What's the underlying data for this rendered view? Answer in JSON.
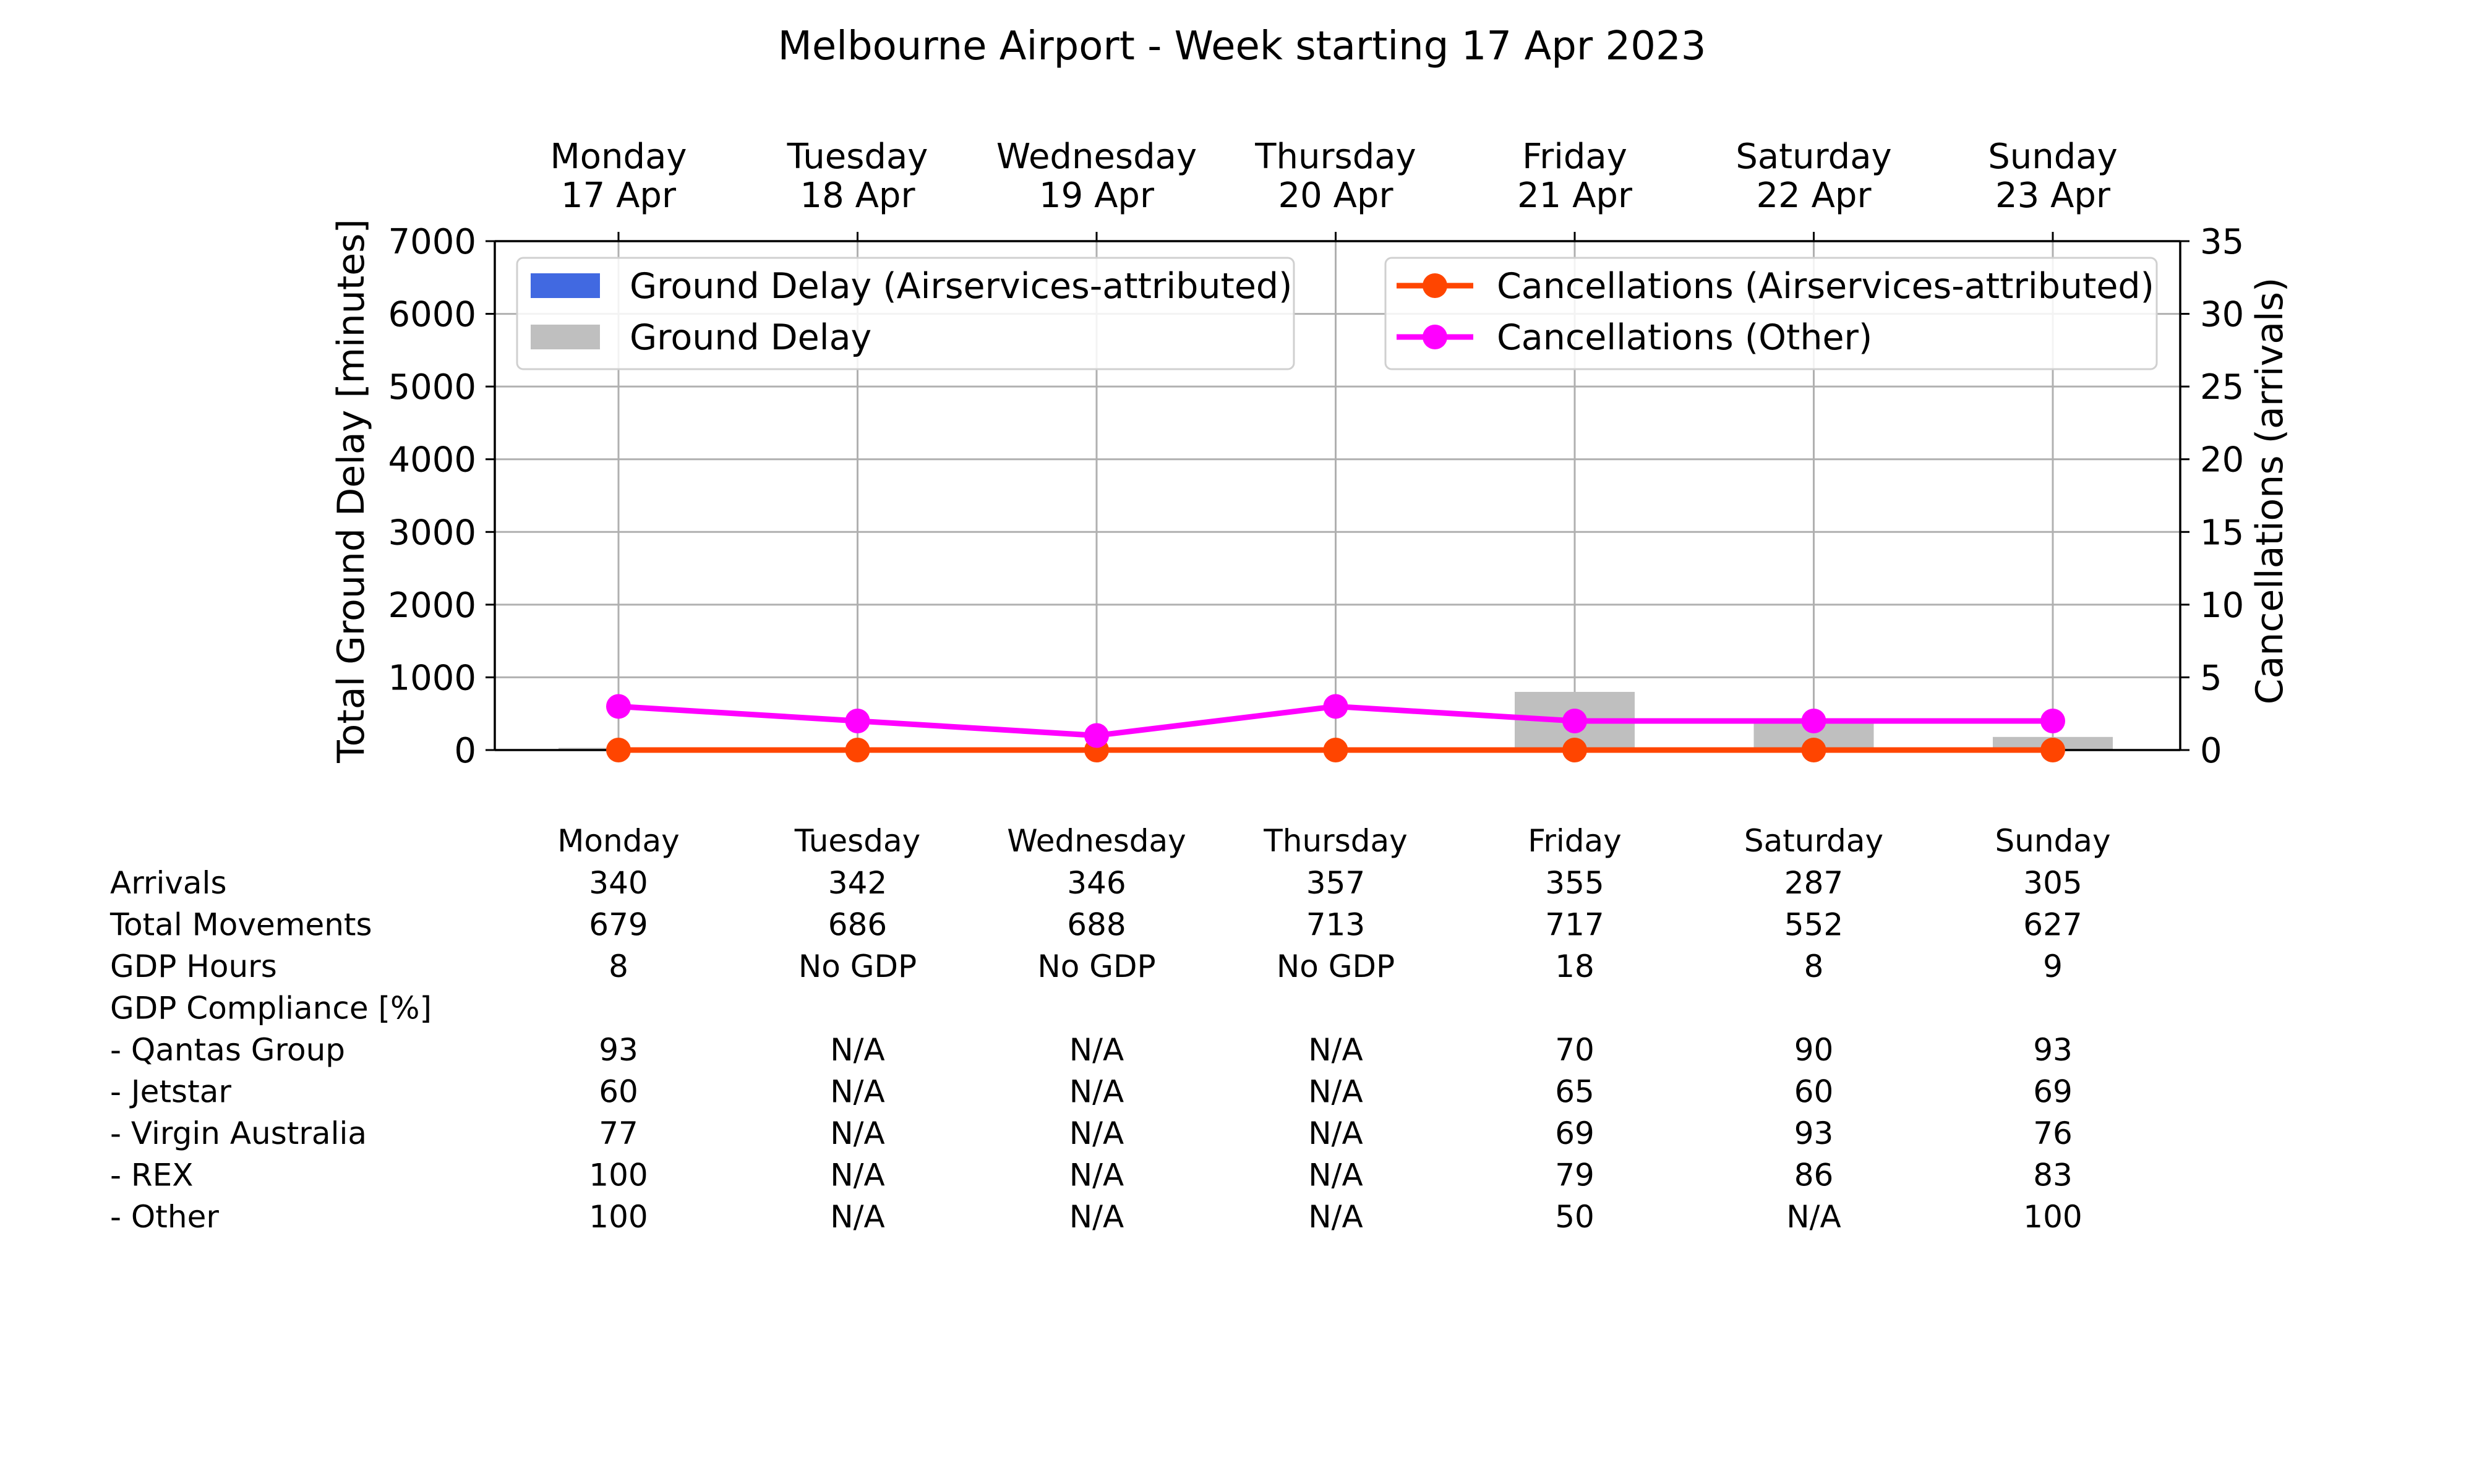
{
  "chart_data": {
    "type": "bar",
    "title": "Melbourne Airport - Week starting 17 Apr 2023",
    "categories": [
      {
        "day": "Monday",
        "date": "17 Apr"
      },
      {
        "day": "Tuesday",
        "date": "18 Apr"
      },
      {
        "day": "Wednesday",
        "date": "19 Apr"
      },
      {
        "day": "Thursday",
        "date": "20 Apr"
      },
      {
        "day": "Friday",
        "date": "21 Apr"
      },
      {
        "day": "Saturday",
        "date": "22 Apr"
      },
      {
        "day": "Sunday",
        "date": "23 Apr"
      }
    ],
    "left_axis": {
      "label": "Total Ground Delay [minutes]",
      "ylim": [
        0,
        7000
      ],
      "ticks": [
        "0",
        "1000",
        "2000",
        "3000",
        "4000",
        "5000",
        "6000",
        "7000"
      ]
    },
    "right_axis": {
      "label": "Cancellations (arrivals)",
      "ylim": [
        0,
        35
      ],
      "ticks": [
        "0",
        "5",
        "10",
        "15",
        "20",
        "25",
        "30",
        "35"
      ]
    },
    "grid": true,
    "bar_series": [
      {
        "name": "Ground Delay",
        "color": "#bfbfbf",
        "values": [
          30,
          0,
          0,
          0,
          800,
          400,
          180
        ]
      },
      {
        "name": "Ground Delay (Airservices-attributed)",
        "color": "#4169e1",
        "values": [
          0,
          0,
          0,
          0,
          0,
          0,
          0
        ]
      }
    ],
    "line_series": [
      {
        "name": "Cancellations (Airservices-attributed)",
        "color": "#ff4500",
        "values": [
          0,
          0,
          0,
          0,
          0,
          0,
          0
        ]
      },
      {
        "name": "Cancellations (Other)",
        "color": "#ff00ff",
        "values": [
          3,
          2,
          1,
          3,
          2,
          2,
          2
        ]
      }
    ],
    "legend_left": [
      "Ground Delay (Airservices-attributed)",
      "Ground Delay"
    ],
    "legend_right": [
      "Cancellations (Airservices-attributed)",
      "Cancellations (Other)"
    ],
    "legend_left_placement": "upper-left",
    "legend_right_placement": "upper-right"
  },
  "table": {
    "header": [
      "Monday",
      "Tuesday",
      "Wednesday",
      "Thursday",
      "Friday",
      "Saturday",
      "Sunday"
    ],
    "rows": [
      {
        "label": "Arrivals",
        "values": [
          "340",
          "342",
          "346",
          "357",
          "355",
          "287",
          "305"
        ]
      },
      {
        "label": "Total Movements",
        "values": [
          "679",
          "686",
          "688",
          "713",
          "717",
          "552",
          "627"
        ]
      },
      {
        "label": "GDP Hours",
        "values": [
          "8",
          "No GDP",
          "No GDP",
          "No GDP",
          "18",
          "8",
          "9"
        ]
      },
      {
        "label": "GDP Compliance [%]",
        "values": [
          "",
          "",
          "",
          "",
          "",
          "",
          ""
        ]
      },
      {
        "label": "  - Qantas Group",
        "values": [
          "93",
          "N/A",
          "N/A",
          "N/A",
          "70",
          "90",
          "93"
        ]
      },
      {
        "label": "  - Jetstar",
        "values": [
          "60",
          "N/A",
          "N/A",
          "N/A",
          "65",
          "60",
          "69"
        ]
      },
      {
        "label": "  - Virgin Australia",
        "values": [
          "77",
          "N/A",
          "N/A",
          "N/A",
          "69",
          "93",
          "76"
        ]
      },
      {
        "label": "  - REX",
        "values": [
          "100",
          "N/A",
          "N/A",
          "N/A",
          "79",
          "86",
          "83"
        ]
      },
      {
        "label": "  - Other",
        "values": [
          "100",
          "N/A",
          "N/A",
          "N/A",
          "50",
          "N/A",
          "100"
        ]
      }
    ]
  }
}
